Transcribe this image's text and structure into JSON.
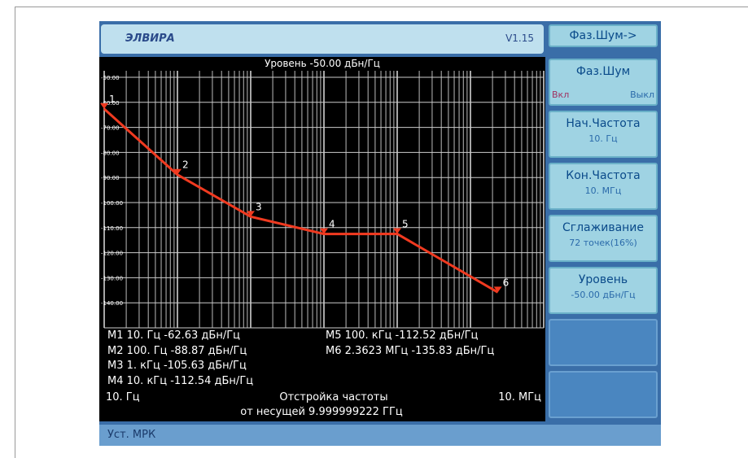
{
  "header": {
    "logo": "ЭЛВИРА",
    "version": "V1.15"
  },
  "top_button": "Фаз.Шум->",
  "plot": {
    "title": "Уровень -50.00 дБн/Гц",
    "xlim": [
      10,
      10000000
    ],
    "log_x": true,
    "ylim": [
      -150,
      -50
    ],
    "yticks": [
      {
        "value": -50,
        "label": "-50.00"
      },
      {
        "value": -60,
        "label": "-60.00"
      },
      {
        "value": -70,
        "label": "-70.00"
      },
      {
        "value": -80,
        "label": "-80.00"
      },
      {
        "value": -90,
        "label": "-90.00"
      },
      {
        "value": -100,
        "label": "-100.00"
      },
      {
        "value": -110,
        "label": "-110.00"
      },
      {
        "value": -120,
        "label": "-120.00"
      },
      {
        "value": -130,
        "label": "-130.00"
      },
      {
        "value": -140,
        "label": "-140.00"
      }
    ],
    "trace_color": "#f03a20",
    "markers": [
      {
        "label": "M1",
        "num": "1",
        "freq": 10,
        "freq_label": "10. Гц",
        "level": -62.63,
        "level_label": "-62.63 дБн/Гц"
      },
      {
        "label": "M2",
        "num": "2",
        "freq": 100,
        "freq_label": "100. Гц",
        "level": -88.87,
        "level_label": "-88.87 дБн/Гц"
      },
      {
        "label": "M3",
        "num": "3",
        "freq": 1000,
        "freq_label": "1. кГц",
        "level": -105.63,
        "level_label": "-105.63 дБн/Гц"
      },
      {
        "label": "M4",
        "num": "4",
        "freq": 10000,
        "freq_label": "10. кГц",
        "level": -112.54,
        "level_label": "-112.54 дБн/Гц"
      },
      {
        "label": "M5",
        "num": "5",
        "freq": 100000,
        "freq_label": "100. кГц",
        "level": -112.52,
        "level_label": "-112.52 дБн/Гц"
      },
      {
        "label": "M6",
        "num": "6",
        "freq": 2362300,
        "freq_label": "2.3623 МГц",
        "level": -135.83,
        "level_label": "-135.83 дБн/Гц"
      }
    ],
    "x_start_label": "10. Гц",
    "x_end_label": "10. МГц",
    "x_title": "Отстройка частоты",
    "x_subtitle": "от несущей 9.999999222 ГГц"
  },
  "softkeys": [
    {
      "title": "Фаз.Шум",
      "on": "Вкл",
      "off": "Выкл"
    },
    {
      "title": "Нач.Частота",
      "value": "10. Гц"
    },
    {
      "title": "Кон.Частота",
      "value": "10. МГц"
    },
    {
      "title": "Сглаживание",
      "value": "72 точек(16%)"
    },
    {
      "title": "Уровень",
      "value": "-50.00 дБн/Гц"
    }
  ],
  "status": "Уст. МРК"
}
